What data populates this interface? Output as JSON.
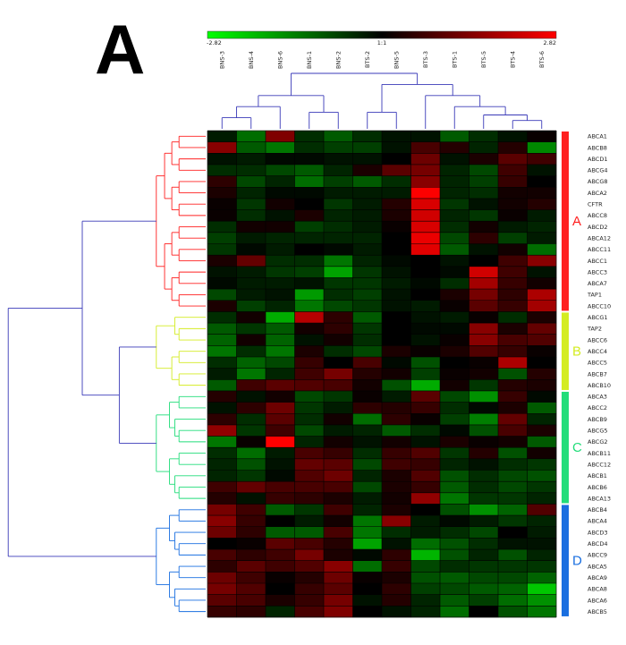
{
  "panel_label": "A",
  "chart_data": {
    "type": "heatmap",
    "title": "",
    "xlabel": "",
    "ylabel": "",
    "colorbar": {
      "min": -2.82,
      "mid": "1:1",
      "max": 2.82,
      "min_label": "-2.82",
      "mid_label": "1:1",
      "max_label": "2.82",
      "low_color": "#00ff00",
      "mid_color": "#000000",
      "high_color": "#ff0000"
    },
    "columns": [
      "BNS-3",
      "BNS-4",
      "BNS-6",
      "BNS-1",
      "BNS-2",
      "BTS-2",
      "BNS-5",
      "BTS-3",
      "BTS-1",
      "BTS-5",
      "BTS-4",
      "BTS-6"
    ],
    "rows": [
      "ABCA1",
      "ABCB8",
      "ABCD1",
      "ABCG4",
      "ABCG8",
      "ABCA2",
      "CFTR",
      "ABCC8",
      "ABCD2",
      "ABCA12",
      "ABCC11",
      "ABCC1",
      "ABCC3",
      "ABCA7",
      "TAP1",
      "ABCC10",
      "ABCG1",
      "TAP2",
      "ABCC6",
      "ABCC4",
      "ABCC5",
      "ABCB7",
      "ABCB10",
      "ABCA3",
      "ABCC2",
      "ABCB9",
      "ABCG5",
      "ABCG2",
      "ABCB11",
      "ABCC12",
      "ABCB1",
      "ABCB6",
      "ABCA13",
      "ABCB4",
      "ABCA4",
      "ABCD3",
      "ABCD4",
      "ABCC9",
      "ABCA5",
      "ABCA9",
      "ABCA8",
      "ABCA6",
      "ABCB5"
    ],
    "values": [
      [
        -0.3,
        -1.2,
        1.4,
        -0.5,
        -1.0,
        -0.5,
        -0.2,
        -0.2,
        -1.0,
        -0.5,
        -0.2,
        0.1
      ],
      [
        1.5,
        -1.0,
        -1.3,
        -0.5,
        -0.7,
        -0.7,
        -0.2,
        0.8,
        0.4,
        -0.4,
        0.4,
        -1.5
      ],
      [
        -0.2,
        -0.3,
        -0.1,
        -0.1,
        -0.2,
        -0.2,
        0.0,
        1.2,
        -0.2,
        0.3,
        1.0,
        0.7
      ],
      [
        -0.5,
        -0.5,
        -0.8,
        -1.0,
        -0.4,
        0.3,
        1.0,
        1.3,
        -0.4,
        -0.8,
        0.7,
        -0.2
      ],
      [
        0.5,
        -0.8,
        -0.4,
        -1.2,
        -0.7,
        -1.0,
        -0.5,
        1.5,
        -0.4,
        -0.7,
        0.6,
        0.0
      ],
      [
        0.3,
        -0.4,
        -0.1,
        -0.1,
        -0.3,
        -0.3,
        -0.3,
        2.8,
        -0.4,
        -0.5,
        0.2,
        0.2
      ],
      [
        0.1,
        -0.6,
        0.2,
        0.0,
        -0.6,
        -0.3,
        0.4,
        2.4,
        -0.6,
        -0.2,
        0.2,
        0.4
      ],
      [
        0.1,
        -0.5,
        -0.2,
        0.3,
        -0.4,
        -0.3,
        0.3,
        2.3,
        -0.4,
        -0.6,
        0.1,
        -0.3
      ],
      [
        -0.5,
        0.2,
        0.2,
        -0.7,
        -0.5,
        -0.3,
        0.1,
        2.4,
        -0.5,
        0.2,
        -0.3,
        -0.4
      ],
      [
        -0.7,
        -0.3,
        -0.4,
        -0.4,
        -0.4,
        -0.4,
        0.0,
        2.6,
        -0.8,
        0.5,
        -0.7,
        -0.3
      ],
      [
        -0.6,
        -0.1,
        -0.3,
        0.0,
        -0.1,
        -0.3,
        0.0,
        2.5,
        -1.0,
        -0.2,
        0.2,
        -1.2
      ],
      [
        0.3,
        1.1,
        -0.5,
        -0.5,
        -1.3,
        -0.4,
        -0.1,
        0.0,
        -0.2,
        0.0,
        0.7,
        1.5
      ],
      [
        -0.2,
        -0.3,
        -0.6,
        -0.7,
        -1.8,
        -0.6,
        -0.2,
        0.0,
        -0.1,
        2.3,
        0.7,
        -0.2
      ],
      [
        -0.1,
        -0.3,
        -0.3,
        -0.2,
        -0.6,
        -0.6,
        -0.3,
        -0.1,
        -0.5,
        1.8,
        0.6,
        0.2
      ],
      [
        -0.8,
        -0.3,
        -0.2,
        -1.7,
        -0.5,
        -0.7,
        -0.2,
        0.0,
        0.3,
        1.3,
        0.5,
        1.9
      ],
      [
        0.3,
        -0.7,
        -0.4,
        -1.3,
        -0.8,
        -0.6,
        -0.2,
        -0.3,
        0.1,
        1.0,
        0.6,
        1.8
      ],
      [
        -0.5,
        0.2,
        -1.9,
        2.0,
        0.5,
        -1.0,
        0.0,
        -0.2,
        -0.3,
        0.1,
        -0.5,
        0.3
      ],
      [
        -1.0,
        -0.6,
        -1.0,
        0.2,
        0.5,
        -0.6,
        0.0,
        -0.1,
        -0.1,
        1.5,
        0.3,
        1.1
      ],
      [
        -1.1,
        0.2,
        -1.1,
        -0.2,
        0.2,
        -0.5,
        0.0,
        -0.2,
        0.1,
        1.5,
        0.8,
        0.9
      ],
      [
        -1.3,
        -0.5,
        -1.3,
        0.3,
        -0.5,
        -0.8,
        0.3,
        0.1,
        0.3,
        0.9,
        0.6,
        0.1
      ],
      [
        -0.5,
        -1.1,
        -0.8,
        0.6,
        0.0,
        0.8,
        -0.1,
        -0.9,
        0.0,
        0.1,
        1.9,
        0.0
      ],
      [
        -0.3,
        -1.3,
        -0.4,
        0.7,
        1.3,
        0.4,
        0.2,
        -0.7,
        0.1,
        0.2,
        -0.9,
        0.4
      ],
      [
        -1.0,
        0.7,
        1.0,
        0.9,
        0.8,
        0.2,
        -0.9,
        -1.9,
        0.2,
        -0.6,
        0.4,
        0.3
      ],
      [
        0.4,
        -0.2,
        0.2,
        -0.8,
        -0.6,
        0.1,
        -0.3,
        1.0,
        -0.8,
        -1.6,
        0.6,
        -0.1
      ],
      [
        -0.2,
        0.5,
        1.2,
        -0.6,
        -0.3,
        0.5,
        0.4,
        0.6,
        -0.5,
        -0.1,
        0.3,
        -1.0
      ],
      [
        0.5,
        -0.5,
        1.0,
        -0.5,
        0.2,
        -1.2,
        0.5,
        0.1,
        -0.7,
        -1.4,
        1.1,
        -0.4
      ],
      [
        1.6,
        -0.6,
        0.7,
        -0.8,
        -0.3,
        -0.4,
        -1.0,
        -0.5,
        -0.1,
        -0.9,
        0.8,
        0.3
      ],
      [
        -1.3,
        0.1,
        2.8,
        -0.4,
        0.2,
        -0.2,
        0.2,
        -0.2,
        0.3,
        0.1,
        0.2,
        -1.0
      ],
      [
        -0.5,
        -1.2,
        -0.3,
        0.8,
        0.6,
        -0.5,
        0.6,
        0.9,
        -0.6,
        0.4,
        -0.9,
        0.2
      ],
      [
        -0.4,
        -0.9,
        -0.2,
        1.1,
        1.0,
        -0.8,
        0.7,
        0.6,
        -0.4,
        -0.2,
        -0.5,
        -0.6
      ],
      [
        -0.4,
        -0.6,
        -0.1,
        0.9,
        1.2,
        -0.4,
        0.3,
        0.9,
        -0.9,
        -0.5,
        -0.8,
        -0.9
      ],
      [
        0.7,
        1.1,
        0.8,
        0.8,
        0.8,
        -0.8,
        0.3,
        0.6,
        -1.0,
        -0.5,
        -0.8,
        -0.6
      ],
      [
        0.4,
        -0.2,
        0.6,
        0.5,
        0.3,
        -0.3,
        0.2,
        1.6,
        -1.3,
        -0.6,
        -0.6,
        -0.4
      ],
      [
        1.3,
        0.7,
        -1.0,
        -0.6,
        0.7,
        -0.4,
        0.3,
        0.0,
        -0.9,
        -1.6,
        -1.1,
        0.9
      ],
      [
        1.5,
        0.6,
        0.0,
        -0.3,
        0.2,
        -1.3,
        1.5,
        -0.3,
        -0.1,
        -0.3,
        -0.6,
        -0.4
      ],
      [
        1.2,
        0.5,
        -1.0,
        -1.0,
        0.8,
        -1.3,
        -0.5,
        -0.3,
        -0.5,
        -0.8,
        0.0,
        -0.3
      ],
      [
        0.0,
        0.1,
        1.0,
        0.8,
        0.4,
        -1.8,
        -0.2,
        -1.2,
        -0.9,
        -0.5,
        -0.2,
        -0.2
      ],
      [
        0.8,
        0.5,
        0.7,
        1.3,
        0.3,
        -0.1,
        0.5,
        -2.0,
        -0.9,
        -0.4,
        -0.9,
        -0.4
      ],
      [
        0.5,
        1.0,
        0.7,
        0.9,
        1.5,
        -1.2,
        0.6,
        -0.8,
        -0.5,
        -0.6,
        -0.6,
        -0.6
      ],
      [
        1.2,
        0.7,
        0.1,
        0.4,
        1.2,
        0.1,
        0.3,
        -0.9,
        -1.0,
        -0.8,
        -0.8,
        -1.1
      ],
      [
        1.3,
        0.9,
        0.0,
        0.6,
        1.0,
        0.0,
        0.5,
        -0.7,
        -0.8,
        -1.0,
        -1.1,
        -2.2
      ],
      [
        1.0,
        0.8,
        0.3,
        0.6,
        1.3,
        -0.2,
        0.4,
        -0.4,
        -1.0,
        -0.7,
        -1.2,
        -1.6
      ],
      [
        0.6,
        0.5,
        -0.4,
        0.8,
        1.4,
        0.0,
        -0.2,
        -0.4,
        -1.2,
        0.0,
        -0.9,
        -1.3
      ]
    ],
    "clusters": [
      {
        "label": "A",
        "start": 0,
        "end": 15,
        "color": "#ff2020"
      },
      {
        "label": "B",
        "start": 16,
        "end": 22,
        "color": "#d4ec22"
      },
      {
        "label": "C",
        "start": 23,
        "end": 32,
        "color": "#22dd7a"
      },
      {
        "label": "D",
        "start": 33,
        "end": 42,
        "color": "#1a6fe0"
      }
    ],
    "grid": true,
    "legend": "top"
  }
}
